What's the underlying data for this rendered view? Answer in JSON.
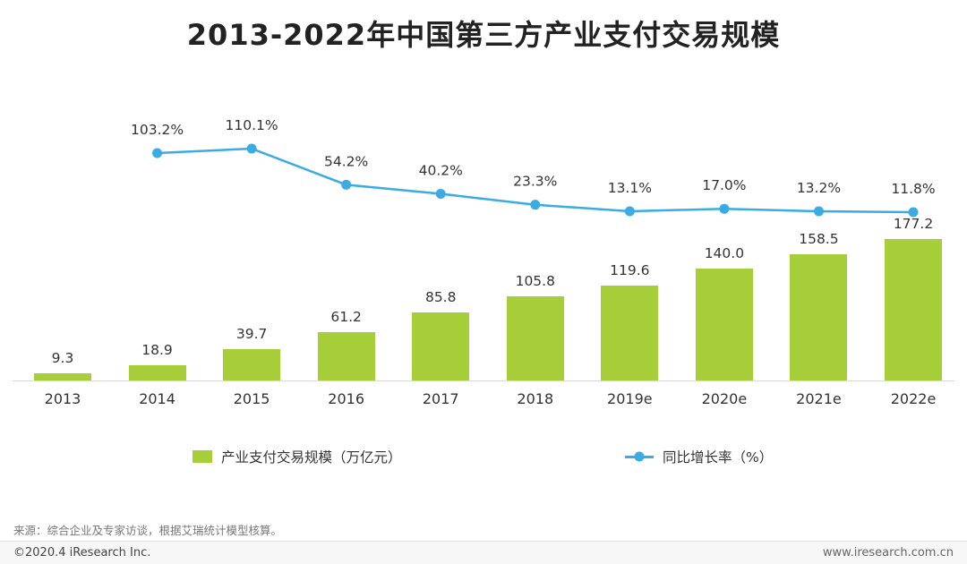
{
  "chart_data": {
    "type": "bar+line",
    "title": "2013-2022年中国第三方产业支付交易规模",
    "categories": [
      "2013",
      "2014",
      "2015",
      "2016",
      "2017",
      "2018",
      "2019e",
      "2020e",
      "2021e",
      "2022e"
    ],
    "series": [
      {
        "name": "产业支付交易规模（万亿元）",
        "type": "bar",
        "unit": "万亿元",
        "color": "#a5ce39",
        "values": [
          9.3,
          18.9,
          39.7,
          61.2,
          85.8,
          105.8,
          119.6,
          140.0,
          158.5,
          177.2
        ]
      },
      {
        "name": "同比增长率（%）",
        "type": "line",
        "unit": "%",
        "color": "#3aabe3",
        "values": [
          null,
          103.2,
          110.1,
          54.2,
          40.2,
          23.3,
          13.1,
          17.0,
          13.2,
          11.8
        ]
      }
    ],
    "legend_position": "bottom",
    "grid": false
  },
  "source_note": "来源：综合企业及专家访谈，根据艾瑞统计模型核算。",
  "footer": {
    "left": "©2020.4 iResearch Inc.",
    "right": "www.iresearch.com.cn"
  }
}
